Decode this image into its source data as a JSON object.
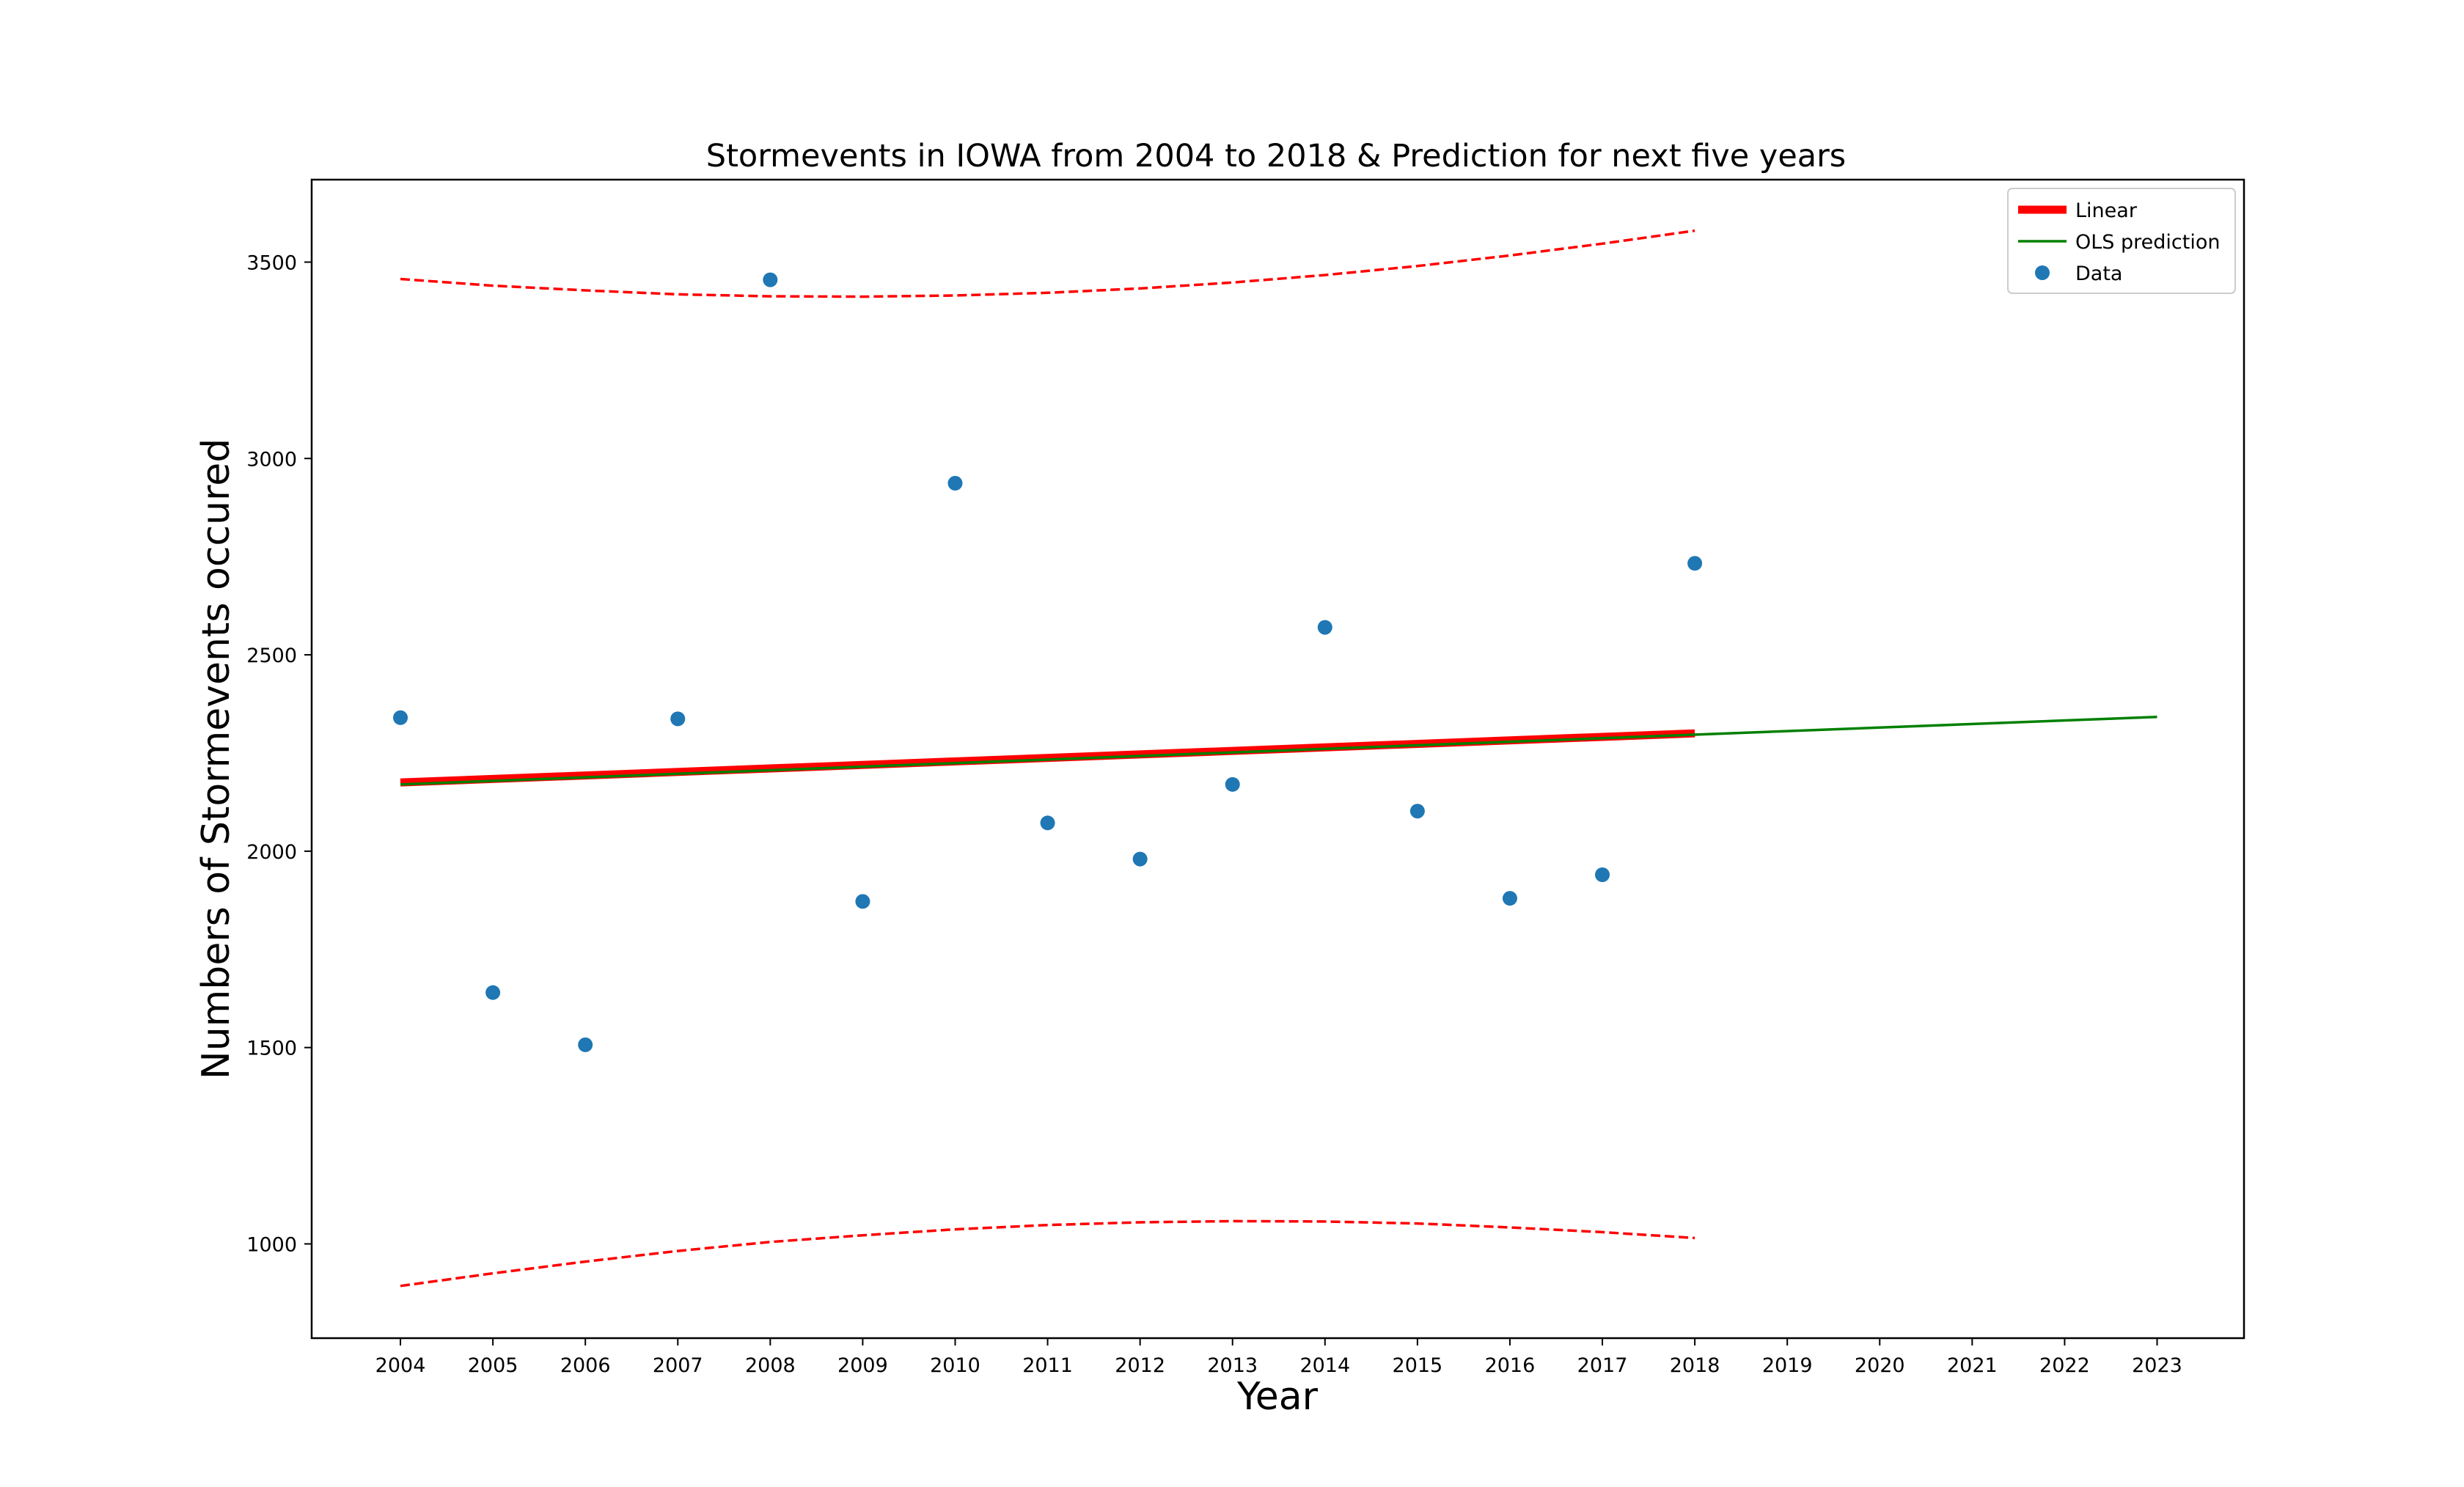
{
  "chart_data": {
    "type": "scatter",
    "title": "Stormevents in IOWA from 2004 to 2018 & Prediction for next five years",
    "xlabel": "Year",
    "ylabel": "Numbers of Stormevents occured",
    "xlim": [
      2003.04,
      2023.94
    ],
    "ylim": [
      760,
      3710
    ],
    "x_ticks": [
      2004,
      2005,
      2006,
      2007,
      2008,
      2009,
      2010,
      2011,
      2012,
      2013,
      2014,
      2015,
      2016,
      2017,
      2018,
      2019,
      2020,
      2021,
      2022,
      2023
    ],
    "y_ticks": [
      1000,
      1500,
      2000,
      2500,
      3000,
      3500
    ],
    "legend_position": "top-right",
    "grid": false,
    "series": [
      {
        "name": "Data",
        "kind": "scatter",
        "color": "#1f77b4",
        "x": [
          2004,
          2005,
          2006,
          2007,
          2008,
          2009,
          2010,
          2011,
          2012,
          2013,
          2014,
          2015,
          2016,
          2017,
          2018
        ],
        "y": [
          2340,
          1640,
          1507,
          2337,
          3455,
          1872,
          2937,
          2072,
          1980,
          2170,
          2570,
          2102,
          1880,
          1940,
          2733
        ]
      },
      {
        "name": "Linear",
        "kind": "line",
        "color": "#ff0000",
        "x": [
          2004,
          2018
        ],
        "y": [
          2175,
          2300
        ]
      },
      {
        "name": "OLS prediction",
        "kind": "line",
        "color": "#008000",
        "x": [
          2004,
          2023
        ],
        "y": [
          2170,
          2342
        ]
      },
      {
        "name": "",
        "kind": "dashed",
        "color": "#ff0000",
        "x": [
          2004,
          2005,
          2006,
          2007,
          2008,
          2009,
          2010,
          2011,
          2012,
          2013,
          2014,
          2015,
          2016,
          2017,
          2018
        ],
        "y": [
          3457,
          3440,
          3428,
          3418,
          3413,
          3412,
          3415,
          3422,
          3433,
          3448,
          3467,
          3490,
          3517,
          3547,
          3580
        ]
      },
      {
        "name": "",
        "kind": "dashed",
        "color": "#ff0000",
        "x": [
          2004,
          2005,
          2006,
          2007,
          2008,
          2009,
          2010,
          2011,
          2012,
          2013,
          2014,
          2015,
          2016,
          2017,
          2018
        ],
        "y": [
          893,
          925,
          955,
          982,
          1005,
          1022,
          1037,
          1048,
          1055,
          1058,
          1057,
          1052,
          1042,
          1030,
          1015
        ]
      }
    ],
    "legend": [
      {
        "label": "Linear",
        "marker": "line",
        "color": "#ff0000"
      },
      {
        "label": "OLS prediction",
        "marker": "line",
        "color": "#008000"
      },
      {
        "label": "Data",
        "marker": "dot",
        "color": "#1f77b4"
      }
    ]
  }
}
